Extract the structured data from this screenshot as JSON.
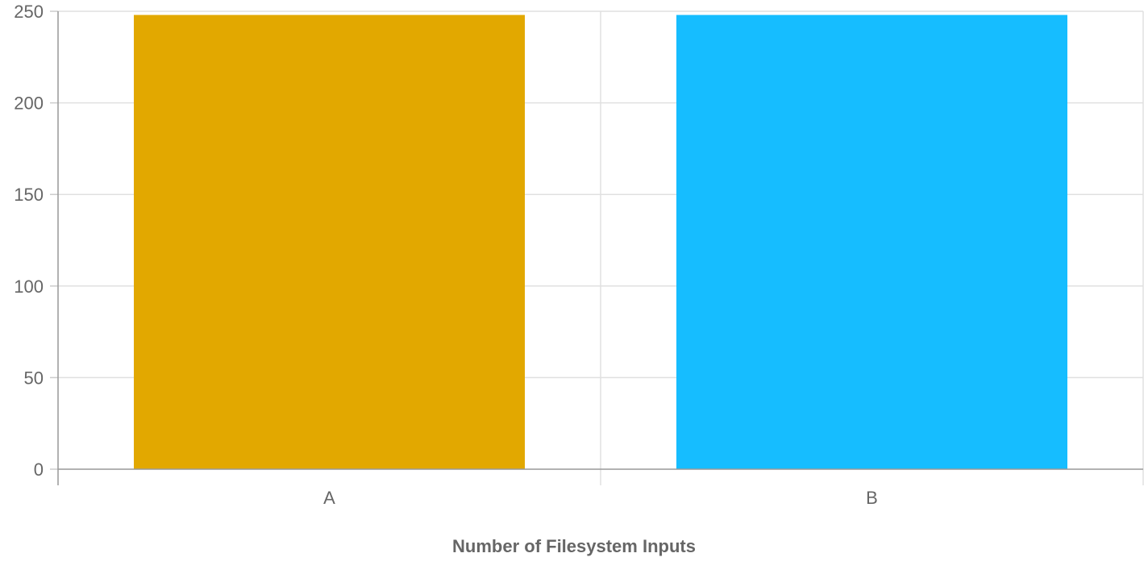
{
  "chart_data": {
    "type": "bar",
    "categories": [
      "A",
      "B"
    ],
    "values": [
      248,
      248
    ],
    "colors": [
      "#e2a800",
      "#16bdff"
    ],
    "xlabel": "Number of Filesystem Inputs",
    "ylabel": "",
    "ylim": [
      0,
      250
    ],
    "yticks": [
      0,
      50,
      100,
      150,
      200,
      250
    ],
    "grid": true,
    "legend": "none"
  }
}
